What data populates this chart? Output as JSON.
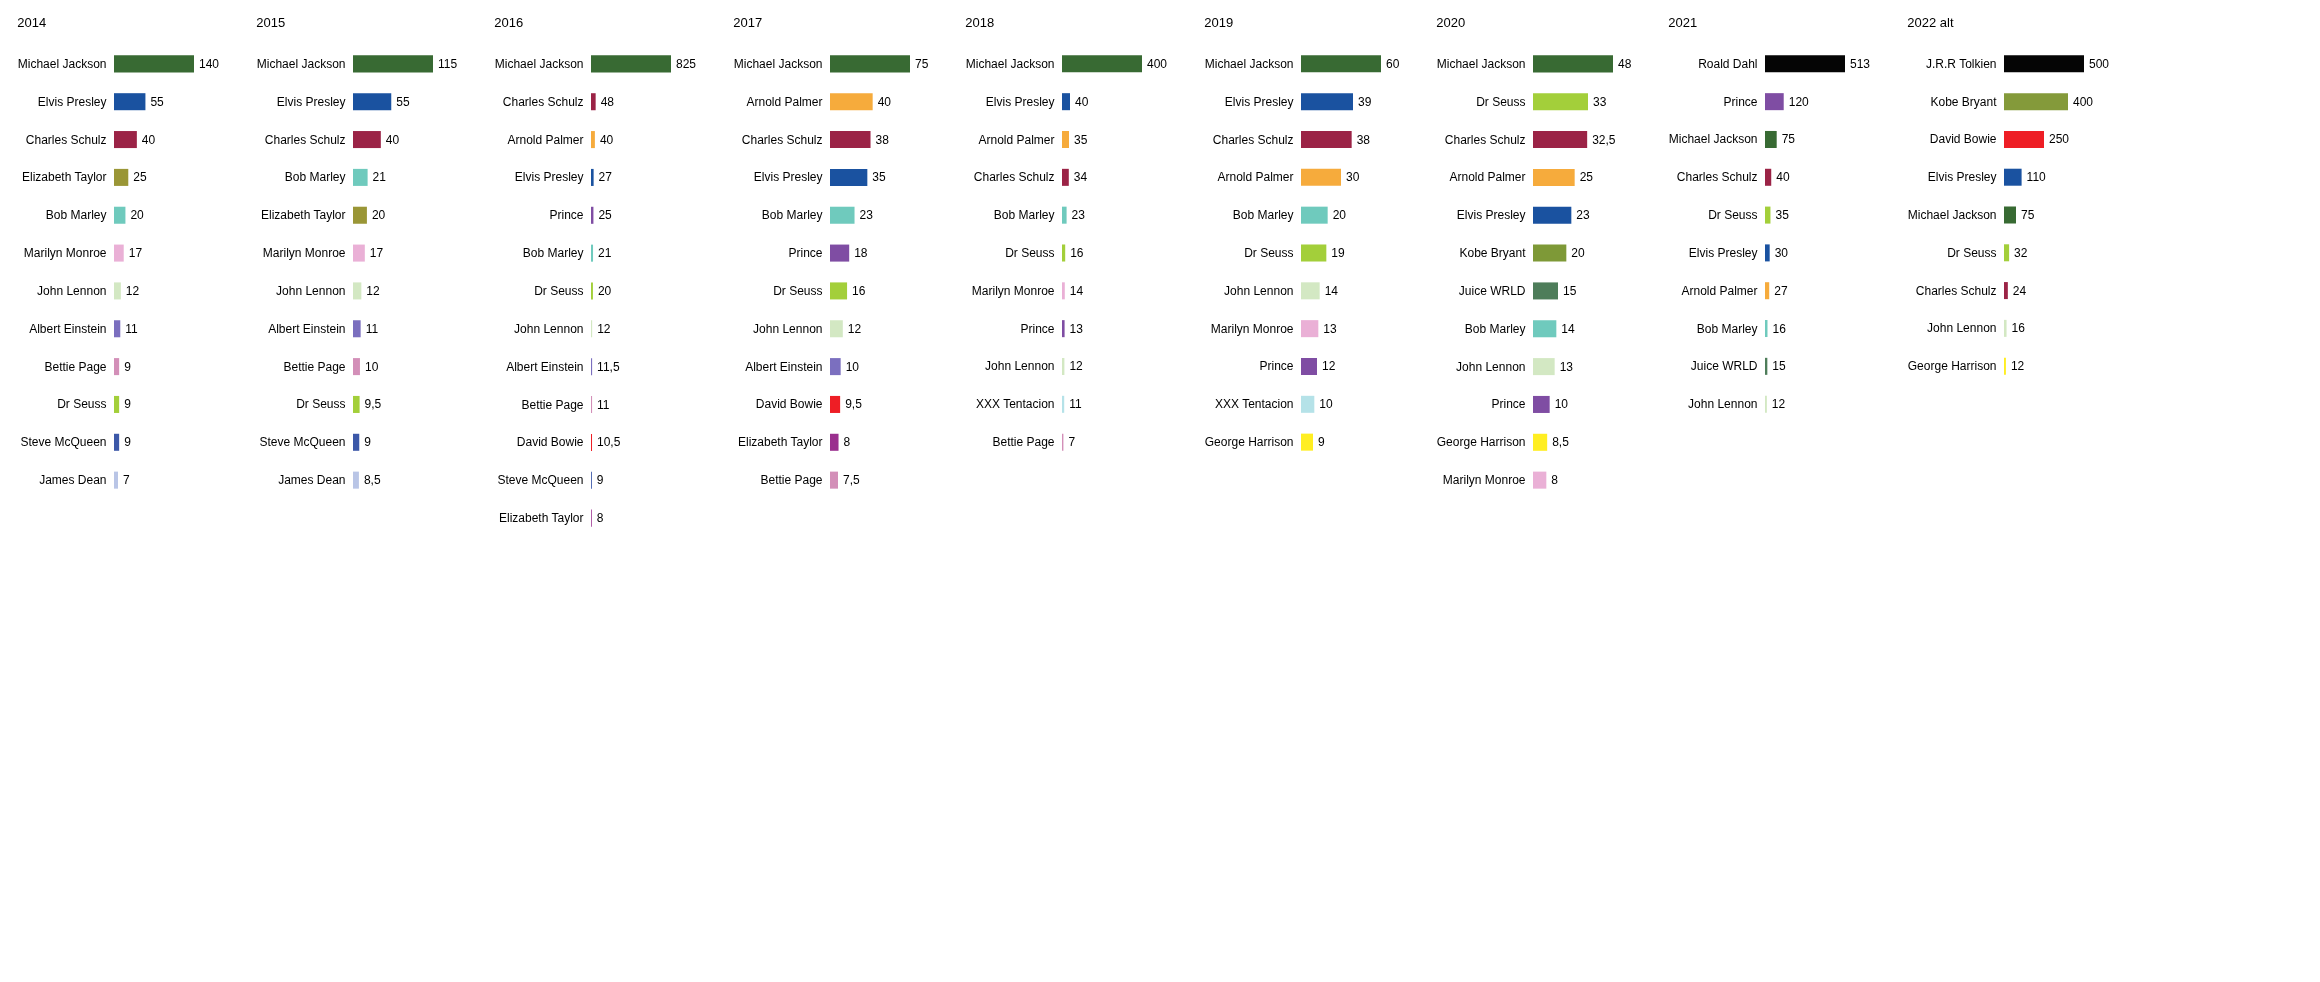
{
  "chart_data": [
    {
      "type": "bar",
      "orientation": "horizontal",
      "title": "2014",
      "categories": [
        "Michael Jackson",
        "Elvis Presley",
        "Charles Schulz",
        "Elizabeth Taylor",
        "Bob Marley",
        "Marilyn Monroe",
        "John Lennon",
        "Albert Einstein",
        "Bettie Page",
        "Dr Seuss",
        "Steve McQueen",
        "James Dean"
      ],
      "values": [
        140,
        55,
        40,
        25,
        20,
        17,
        12,
        11,
        9,
        9,
        9,
        7
      ],
      "value_labels": [
        "140",
        "55",
        "40",
        "25",
        "20",
        "17",
        "12",
        "11",
        "9",
        "9",
        "9",
        "7"
      ],
      "colors": [
        "#386a33",
        "#1a52a0",
        "#9b2346",
        "#9a9636",
        "#6fcabd",
        "#eab0d6",
        "#d3e8c3",
        "#7b6fbf",
        "#d38fb8",
        "#a3cf3a",
        "#3c58a8",
        "#b9c5e6"
      ]
    },
    {
      "type": "bar",
      "orientation": "horizontal",
      "title": "2015",
      "categories": [
        "Michael Jackson",
        "Elvis Presley",
        "Charles Schulz",
        "Bob Marley",
        "Elizabeth Taylor",
        "Marilyn Monroe",
        "John Lennon",
        "Albert Einstein",
        "Bettie Page",
        "Dr Seuss",
        "Steve McQueen",
        "James Dean"
      ],
      "values": [
        115,
        55,
        40,
        21,
        20,
        17,
        12,
        11,
        10,
        9.5,
        9,
        8.5
      ],
      "value_labels": [
        "115",
        "55",
        "40",
        "21",
        "20",
        "17",
        "12",
        "11",
        "10",
        "9,5",
        "9",
        "8,5"
      ],
      "colors": [
        "#386a33",
        "#1a52a0",
        "#9b2346",
        "#6fcabd",
        "#9a9636",
        "#eab0d6",
        "#d3e8c3",
        "#7b6fbf",
        "#d38fb8",
        "#a3cf3a",
        "#3c58a8",
        "#b9c5e6"
      ]
    },
    {
      "type": "bar",
      "orientation": "horizontal",
      "title": "2016",
      "categories": [
        "Michael Jackson",
        "Charles Schulz",
        "Arnold Palmer",
        "Elvis Presley",
        "Prince",
        "Bob Marley",
        "Dr Seuss",
        "John Lennon",
        "Albert Einstein",
        "Bettie Page",
        "David Bowie",
        "Steve McQueen",
        "Elizabeth Taylor"
      ],
      "values": [
        825,
        48,
        40,
        27,
        25,
        21,
        20,
        12,
        11.5,
        11,
        10.5,
        9,
        8
      ],
      "value_labels": [
        "825",
        "48",
        "40",
        "27",
        "25",
        "21",
        "20",
        "12",
        "11,5",
        "11",
        "10,5",
        "9",
        "8"
      ],
      "colors": [
        "#386a33",
        "#9b2346",
        "#f6ab3c",
        "#1a52a0",
        "#7f4da3",
        "#6fcabd",
        "#a3cf3a",
        "#d3e8c3",
        "#7b6fbf",
        "#d38fb8",
        "#ee1e25",
        "#3c58a8",
        "#9a2f8e"
      ]
    },
    {
      "type": "bar",
      "orientation": "horizontal",
      "title": "2017",
      "categories": [
        "Michael Jackson",
        "Arnold Palmer",
        "Charles Schulz",
        "Elvis Presley",
        "Bob Marley",
        "Prince",
        "Dr Seuss",
        "John Lennon",
        "Albert Einstein",
        "David Bowie",
        "Elizabeth Taylor",
        "Bettie Page"
      ],
      "values": [
        75,
        40,
        38,
        35,
        23,
        18,
        16,
        12,
        10,
        9.5,
        8,
        7.5
      ],
      "value_labels": [
        "75",
        "40",
        "38",
        "35",
        "23",
        "18",
        "16",
        "12",
        "10",
        "9,5",
        "8",
        "7,5"
      ],
      "colors": [
        "#386a33",
        "#f6ab3c",
        "#9b2346",
        "#1a52a0",
        "#6fcabd",
        "#7f4da3",
        "#a3cf3a",
        "#d3e8c3",
        "#7b6fbf",
        "#ee1e25",
        "#9a2f8e",
        "#d38fb8"
      ]
    },
    {
      "type": "bar",
      "orientation": "horizontal",
      "title": "2018",
      "categories": [
        "Michael Jackson",
        "Elvis Presley",
        "Arnold Palmer",
        "Charles Schulz",
        "Bob Marley",
        "Dr Seuss",
        "Marilyn Monroe",
        "Prince",
        "John Lennon",
        "XXX Tentacion",
        "Bettie Page"
      ],
      "values": [
        400,
        40,
        35,
        34,
        23,
        16,
        14,
        13,
        12,
        11,
        7
      ],
      "value_labels": [
        "400",
        "40",
        "35",
        "34",
        "23",
        "16",
        "14",
        "13",
        "12",
        "11",
        "7"
      ],
      "colors": [
        "#386a33",
        "#1a52a0",
        "#f6ab3c",
        "#9b2346",
        "#6fcabd",
        "#a3cf3a",
        "#eab0d6",
        "#7f4da3",
        "#d3e8c3",
        "#b5e2e8",
        "#d38fb8"
      ]
    },
    {
      "type": "bar",
      "orientation": "horizontal",
      "title": "2019",
      "categories": [
        "Michael Jackson",
        "Elvis Presley",
        "Charles Schulz",
        "Arnold Palmer",
        "Bob Marley",
        "Dr Seuss",
        "John Lennon",
        "Marilyn Monroe",
        "Prince",
        "XXX Tentacion",
        "George Harrison"
      ],
      "values": [
        60,
        39,
        38,
        30,
        20,
        19,
        14,
        13,
        12,
        10,
        9
      ],
      "value_labels": [
        "60",
        "39",
        "38",
        "30",
        "20",
        "19",
        "14",
        "13",
        "12",
        "10",
        "9"
      ],
      "colors": [
        "#386a33",
        "#1a52a0",
        "#9b2346",
        "#f6ab3c",
        "#6fcabd",
        "#a3cf3a",
        "#d3e8c3",
        "#eab0d6",
        "#7f4da3",
        "#b5e2e8",
        "#ffee22"
      ]
    },
    {
      "type": "bar",
      "orientation": "horizontal",
      "title": "2020",
      "categories": [
        "Michael Jackson",
        "Dr Seuss",
        "Charles Schulz",
        "Arnold Palmer",
        "Elvis Presley",
        "Kobe Bryant",
        "Juice WRLD",
        "Bob Marley",
        "John Lennon",
        "Prince",
        "George Harrison",
        "Marilyn Monroe"
      ],
      "values": [
        48,
        33,
        32.5,
        25,
        23,
        20,
        15,
        14,
        13,
        10,
        8.5,
        8
      ],
      "value_labels": [
        "48",
        "33",
        "32,5",
        "25",
        "23",
        "20",
        "15",
        "14",
        "13",
        "10",
        "8,5",
        "8"
      ],
      "colors": [
        "#386a33",
        "#a3cf3a",
        "#9b2346",
        "#f6ab3c",
        "#1a52a0",
        "#7e9937",
        "#4e7d5a",
        "#6fcabd",
        "#d3e8c3",
        "#7f4da3",
        "#ffee22",
        "#eab0d6"
      ]
    },
    {
      "type": "bar",
      "orientation": "horizontal",
      "title": "2021",
      "categories": [
        "Roald Dahl",
        "Prince",
        "Michael Jackson",
        "Charles Schulz",
        "Dr Seuss",
        "Elvis Presley",
        "Arnold Palmer",
        "Bob Marley",
        "Juice WRLD",
        "John Lennon"
      ],
      "values": [
        513,
        120,
        75,
        40,
        35,
        30,
        27,
        16,
        15,
        12
      ],
      "value_labels": [
        "513",
        "120",
        "75",
        "40",
        "35",
        "30",
        "27",
        "16",
        "15",
        "12"
      ],
      "colors": [
        "#050505",
        "#7f4da3",
        "#386a33",
        "#9b2346",
        "#a3cf3a",
        "#1a52a0",
        "#f6ab3c",
        "#6fcabd",
        "#4e7d5a",
        "#d3e8c3"
      ]
    },
    {
      "type": "bar",
      "orientation": "horizontal",
      "title": "2022 alt",
      "categories": [
        "J.R.R Tolkien",
        "Kobe Bryant",
        "David Bowie",
        "Elvis Presley",
        "Michael Jackson",
        "Dr Seuss",
        "Charles Schulz",
        "John Lennon",
        "George Harrison"
      ],
      "values": [
        500,
        400,
        250,
        110,
        75,
        32,
        24,
        16,
        12
      ],
      "value_labels": [
        "500",
        "400",
        "250",
        "110",
        "75",
        "32",
        "24",
        "16",
        "12"
      ],
      "colors": [
        "#050505",
        "#849a3a",
        "#ee1e25",
        "#1a52a0",
        "#386a33",
        "#a3cf3a",
        "#9b2346",
        "#d3e8c3",
        "#ffee22"
      ]
    }
  ]
}
